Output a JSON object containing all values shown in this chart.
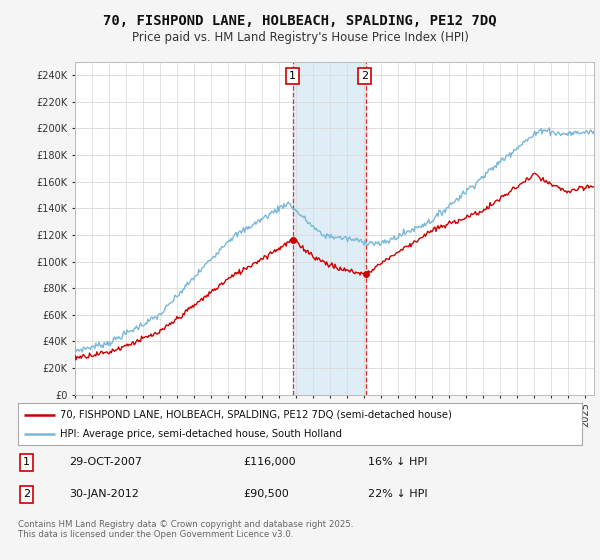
{
  "title": "70, FISHPOND LANE, HOLBEACH, SPALDING, PE12 7DQ",
  "subtitle": "Price paid vs. HM Land Registry's House Price Index (HPI)",
  "ylim": [
    0,
    250000
  ],
  "yticks": [
    0,
    20000,
    40000,
    60000,
    80000,
    100000,
    120000,
    140000,
    160000,
    180000,
    200000,
    220000,
    240000
  ],
  "background_color": "#f5f5f5",
  "plot_bg": "#ffffff",
  "hpi_color": "#7ab8d9",
  "price_color": "#cc0000",
  "shade_color": "#daeaf5",
  "vline_color": "#dd3333",
  "marker1_x": 2007.83,
  "marker2_x": 2012.08,
  "marker1_price": 116000,
  "marker2_price": 90500,
  "legend_line1": "70, FISHPOND LANE, HOLBEACH, SPALDING, PE12 7DQ (semi-detached house)",
  "legend_line2": "HPI: Average price, semi-detached house, South Holland",
  "footer": "Contains HM Land Registry data © Crown copyright and database right 2025.\nThis data is licensed under the Open Government Licence v3.0.",
  "title_fontsize": 10,
  "subtitle_fontsize": 8.5,
  "tick_fontsize": 7,
  "label_fontsize": 8
}
